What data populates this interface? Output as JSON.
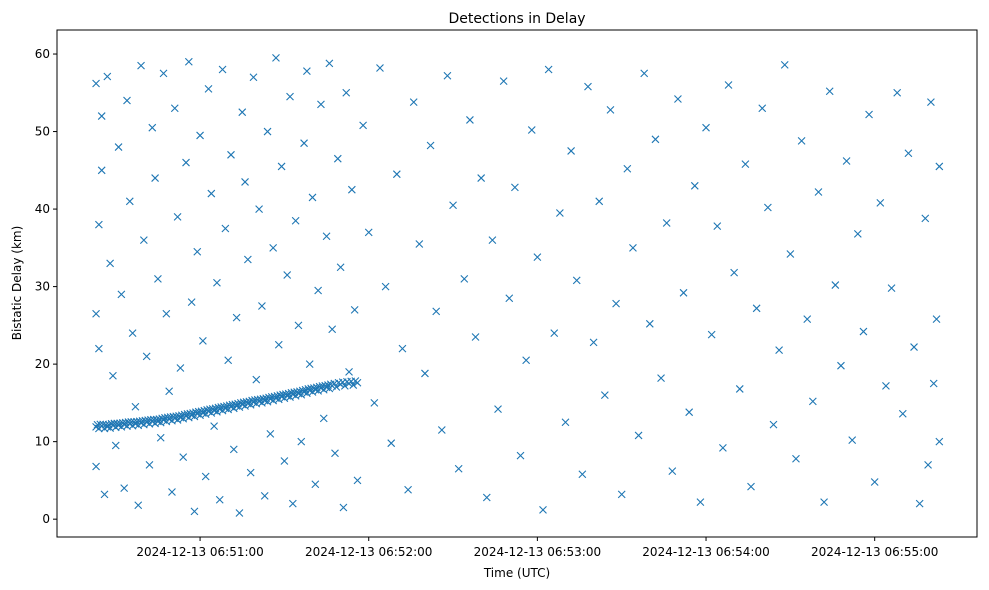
{
  "chart_data": {
    "type": "scatter",
    "title": "Detections in Delay",
    "xlabel": "Time (UTC)",
    "ylabel": "Bistatic Delay (km)",
    "x_units": "seconds after 2024-12-13 06:50:00 UTC",
    "xlim": [
      9.1,
      336.4
    ],
    "ylim": [
      -2.3,
      63.1
    ],
    "grid": false,
    "marker": "x",
    "color": "#1f77b4",
    "xticks": [
      {
        "value": 60,
        "label": "2024-12-13 06:51:00"
      },
      {
        "value": 120,
        "label": "2024-12-13 06:52:00"
      },
      {
        "value": 180,
        "label": "2024-12-13 06:53:00"
      },
      {
        "value": 240,
        "label": "2024-12-13 06:54:00"
      },
      {
        "value": 300,
        "label": "2024-12-13 06:55:00"
      }
    ],
    "yticks": [
      {
        "value": 0,
        "label": "0"
      },
      {
        "value": 10,
        "label": "10"
      },
      {
        "value": 20,
        "label": "20"
      },
      {
        "value": 30,
        "label": "30"
      },
      {
        "value": 40,
        "label": "40"
      },
      {
        "value": 50,
        "label": "50"
      },
      {
        "value": 60,
        "label": "60"
      }
    ],
    "track_points": [
      [
        23,
        11.9
      ],
      [
        25,
        12.0
      ],
      [
        27,
        11.9
      ],
      [
        29,
        12.1
      ],
      [
        31,
        12.1
      ],
      [
        33,
        12.2
      ],
      [
        35,
        12.3
      ],
      [
        37,
        12.3
      ],
      [
        39,
        12.4
      ],
      [
        41,
        12.5
      ],
      [
        43,
        12.6
      ],
      [
        45,
        12.6
      ],
      [
        47,
        12.8
      ],
      [
        49,
        12.9
      ],
      [
        51,
        13.0
      ],
      [
        53,
        13.1
      ],
      [
        55,
        13.3
      ],
      [
        57,
        13.4
      ],
      [
        59,
        13.6
      ],
      [
        61,
        13.7
      ],
      [
        63,
        13.9
      ],
      [
        65,
        14.0
      ],
      [
        67,
        14.2
      ],
      [
        69,
        14.3
      ],
      [
        71,
        14.5
      ],
      [
        73,
        14.6
      ],
      [
        75,
        14.8
      ],
      [
        77,
        14.9
      ],
      [
        79,
        15.1
      ],
      [
        81,
        15.2
      ],
      [
        83,
        15.3
      ],
      [
        85,
        15.5
      ],
      [
        87,
        15.6
      ],
      [
        89,
        15.8
      ],
      [
        91,
        15.9
      ],
      [
        93,
        16.1
      ],
      [
        95,
        16.2
      ],
      [
        97,
        16.4
      ],
      [
        99,
        16.6
      ],
      [
        101,
        16.7
      ],
      [
        103,
        16.9
      ],
      [
        105,
        17.0
      ],
      [
        107,
        17.2
      ],
      [
        110,
        17.4
      ],
      [
        113,
        17.5
      ],
      [
        116,
        17.6
      ]
    ],
    "points": [
      [
        23,
        56.2
      ],
      [
        25,
        52.0
      ],
      [
        24,
        38.0
      ],
      [
        23,
        26.5
      ],
      [
        24,
        22.0
      ],
      [
        23,
        6.8
      ],
      [
        26,
        3.2
      ],
      [
        25,
        45.0
      ],
      [
        27,
        57.1
      ],
      [
        28,
        33.0
      ],
      [
        29,
        18.5
      ],
      [
        30,
        9.5
      ],
      [
        31,
        48.0
      ],
      [
        32,
        29.0
      ],
      [
        33,
        4.0
      ],
      [
        34,
        54.0
      ],
      [
        35,
        41.0
      ],
      [
        36,
        24.0
      ],
      [
        37,
        14.5
      ],
      [
        38,
        1.8
      ],
      [
        39,
        58.5
      ],
      [
        40,
        36.0
      ],
      [
        41,
        21.0
      ],
      [
        42,
        7.0
      ],
      [
        43,
        50.5
      ],
      [
        44,
        44.0
      ],
      [
        45,
        31.0
      ],
      [
        46,
        10.5
      ],
      [
        47,
        57.5
      ],
      [
        48,
        26.5
      ],
      [
        49,
        16.5
      ],
      [
        50,
        3.5
      ],
      [
        51,
        53.0
      ],
      [
        52,
        39.0
      ],
      [
        53,
        19.5
      ],
      [
        54,
        8.0
      ],
      [
        55,
        46.0
      ],
      [
        56,
        59.0
      ],
      [
        57,
        28.0
      ],
      [
        58,
        1.0
      ],
      [
        59,
        34.5
      ],
      [
        60,
        49.5
      ],
      [
        61,
        23.0
      ],
      [
        62,
        5.5
      ],
      [
        63,
        55.5
      ],
      [
        64,
        42.0
      ],
      [
        65,
        12.0
      ],
      [
        66,
        30.5
      ],
      [
        67,
        2.5
      ],
      [
        68,
        58.0
      ],
      [
        69,
        37.5
      ],
      [
        70,
        20.5
      ],
      [
        71,
        47.0
      ],
      [
        72,
        9.0
      ],
      [
        73,
        26.0
      ],
      [
        74,
        0.8
      ],
      [
        75,
        52.5
      ],
      [
        76,
        43.5
      ],
      [
        77,
        33.5
      ],
      [
        78,
        6.0
      ],
      [
        79,
        57.0
      ],
      [
        80,
        18.0
      ],
      [
        81,
        40.0
      ],
      [
        82,
        27.5
      ],
      [
        83,
        3.0
      ],
      [
        84,
        50.0
      ],
      [
        85,
        11.0
      ],
      [
        86,
        35.0
      ],
      [
        87,
        59.5
      ],
      [
        88,
        22.5
      ],
      [
        89,
        45.5
      ],
      [
        90,
        7.5
      ],
      [
        91,
        31.5
      ],
      [
        92,
        54.5
      ],
      [
        93,
        2.0
      ],
      [
        94,
        38.5
      ],
      [
        95,
        25.0
      ],
      [
        96,
        10.0
      ],
      [
        97,
        48.5
      ],
      [
        98,
        57.8
      ],
      [
        99,
        20.0
      ],
      [
        100,
        41.5
      ],
      [
        101,
        4.5
      ],
      [
        102,
        29.5
      ],
      [
        103,
        53.5
      ],
      [
        104,
        13.0
      ],
      [
        105,
        36.5
      ],
      [
        106,
        58.8
      ],
      [
        107,
        24.5
      ],
      [
        108,
        8.5
      ],
      [
        109,
        46.5
      ],
      [
        110,
        32.5
      ],
      [
        111,
        1.5
      ],
      [
        112,
        55.0
      ],
      [
        113,
        19.0
      ],
      [
        114,
        42.5
      ],
      [
        115,
        27.0
      ],
      [
        116,
        5.0
      ],
      [
        118,
        50.8
      ],
      [
        120,
        37.0
      ],
      [
        122,
        15.0
      ],
      [
        124,
        58.2
      ],
      [
        126,
        30.0
      ],
      [
        128,
        9.8
      ],
      [
        130,
        44.5
      ],
      [
        132,
        22.0
      ],
      [
        134,
        3.8
      ],
      [
        136,
        53.8
      ],
      [
        138,
        35.5
      ],
      [
        140,
        18.8
      ],
      [
        142,
        48.2
      ],
      [
        144,
        26.8
      ],
      [
        146,
        11.5
      ],
      [
        148,
        57.2
      ],
      [
        150,
        40.5
      ],
      [
        152,
        6.5
      ],
      [
        154,
        31.0
      ],
      [
        156,
        51.5
      ],
      [
        158,
        23.5
      ],
      [
        160,
        44.0
      ],
      [
        162,
        2.8
      ],
      [
        164,
        36.0
      ],
      [
        166,
        14.2
      ],
      [
        168,
        56.5
      ],
      [
        170,
        28.5
      ],
      [
        172,
        42.8
      ],
      [
        174,
        8.2
      ],
      [
        176,
        20.5
      ],
      [
        178,
        50.2
      ],
      [
        180,
        33.8
      ],
      [
        182,
        1.2
      ],
      [
        184,
        58.0
      ],
      [
        186,
        24.0
      ],
      [
        188,
        39.5
      ],
      [
        190,
        12.5
      ],
      [
        192,
        47.5
      ],
      [
        194,
        30.8
      ],
      [
        196,
        5.8
      ],
      [
        198,
        55.8
      ],
      [
        200,
        22.8
      ],
      [
        202,
        41.0
      ],
      [
        204,
        16.0
      ],
      [
        206,
        52.8
      ],
      [
        208,
        27.8
      ],
      [
        210,
        3.2
      ],
      [
        212,
        45.2
      ],
      [
        214,
        35.0
      ],
      [
        216,
        10.8
      ],
      [
        218,
        57.5
      ],
      [
        220,
        25.2
      ],
      [
        222,
        49.0
      ],
      [
        224,
        18.2
      ],
      [
        226,
        38.2
      ],
      [
        228,
        6.2
      ],
      [
        230,
        54.2
      ],
      [
        232,
        29.2
      ],
      [
        234,
        13.8
      ],
      [
        236,
        43.0
      ],
      [
        238,
        2.2
      ],
      [
        240,
        50.5
      ],
      [
        242,
        23.8
      ],
      [
        244,
        37.8
      ],
      [
        246,
        9.2
      ],
      [
        248,
        56.0
      ],
      [
        250,
        31.8
      ],
      [
        252,
        16.8
      ],
      [
        254,
        45.8
      ],
      [
        256,
        4.2
      ],
      [
        258,
        27.2
      ],
      [
        260,
        53.0
      ],
      [
        262,
        40.2
      ],
      [
        264,
        12.2
      ],
      [
        266,
        21.8
      ],
      [
        268,
        58.6
      ],
      [
        270,
        34.2
      ],
      [
        272,
        7.8
      ],
      [
        274,
        48.8
      ],
      [
        276,
        25.8
      ],
      [
        278,
        15.2
      ],
      [
        280,
        42.2
      ],
      [
        282,
        2.2
      ],
      [
        284,
        55.2
      ],
      [
        286,
        30.2
      ],
      [
        288,
        19.8
      ],
      [
        290,
        46.2
      ],
      [
        292,
        10.2
      ],
      [
        294,
        36.8
      ],
      [
        296,
        24.2
      ],
      [
        298,
        52.2
      ],
      [
        300,
        4.8
      ],
      [
        302,
        40.8
      ],
      [
        304,
        17.2
      ],
      [
        306,
        29.8
      ],
      [
        308,
        55.0
      ],
      [
        310,
        13.6
      ],
      [
        312,
        47.2
      ],
      [
        314,
        22.2
      ],
      [
        316,
        2.0
      ],
      [
        318,
        38.8
      ],
      [
        320,
        53.8
      ],
      [
        322,
        25.8
      ],
      [
        323,
        10.0
      ],
      [
        323,
        45.5
      ],
      [
        321,
        17.5
      ],
      [
        319,
        7.0
      ]
    ]
  }
}
